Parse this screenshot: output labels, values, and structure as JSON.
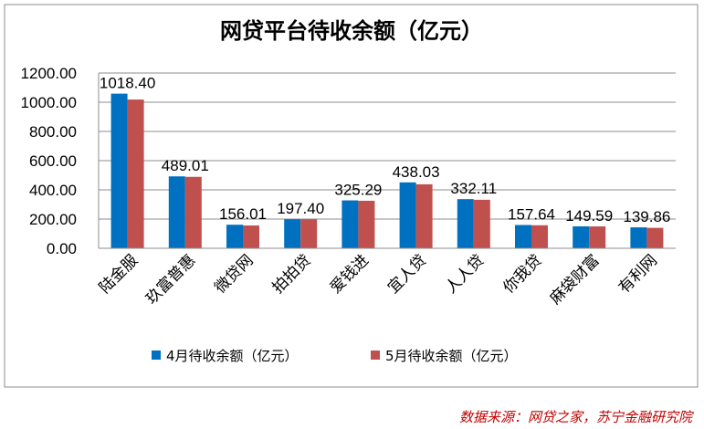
{
  "chart_data": {
    "type": "bar",
    "title": "网贷平台待收余额（亿元）",
    "categories": [
      "陆金服",
      "玖富普惠",
      "微贷网",
      "拍拍贷",
      "爱钱进",
      "宜人贷",
      "人人贷",
      "你我贷",
      "麻袋财富",
      "有利网"
    ],
    "series": [
      {
        "name": "4月待收余额（亿元）",
        "color": "#0070c0",
        "values": [
          1058.6,
          492.3,
          161.2,
          198.5,
          327.8,
          451.2,
          336.6,
          159.4,
          150.1,
          143.2
        ]
      },
      {
        "name": "5月待收余额（亿元）",
        "color": "#c0504d",
        "values": [
          1018.4,
          489.01,
          156.01,
          197.4,
          325.29,
          438.03,
          332.11,
          157.64,
          149.59,
          139.86
        ]
      }
    ],
    "data_labels": [
      "1018.40",
      "489.01",
      "156.01",
      "197.40",
      "325.29",
      "438.03",
      "332.11",
      "157.64",
      "149.59",
      "139.86"
    ],
    "ylim": [
      0,
      1200
    ],
    "yticks": [
      "0.00",
      "200.00",
      "400.00",
      "600.00",
      "800.00",
      "1000.00",
      "1200.00"
    ],
    "grid": true,
    "legend_position": "bottom"
  },
  "footer": {
    "source": "数据来源：网贷之家，苏宁金融研究院"
  }
}
